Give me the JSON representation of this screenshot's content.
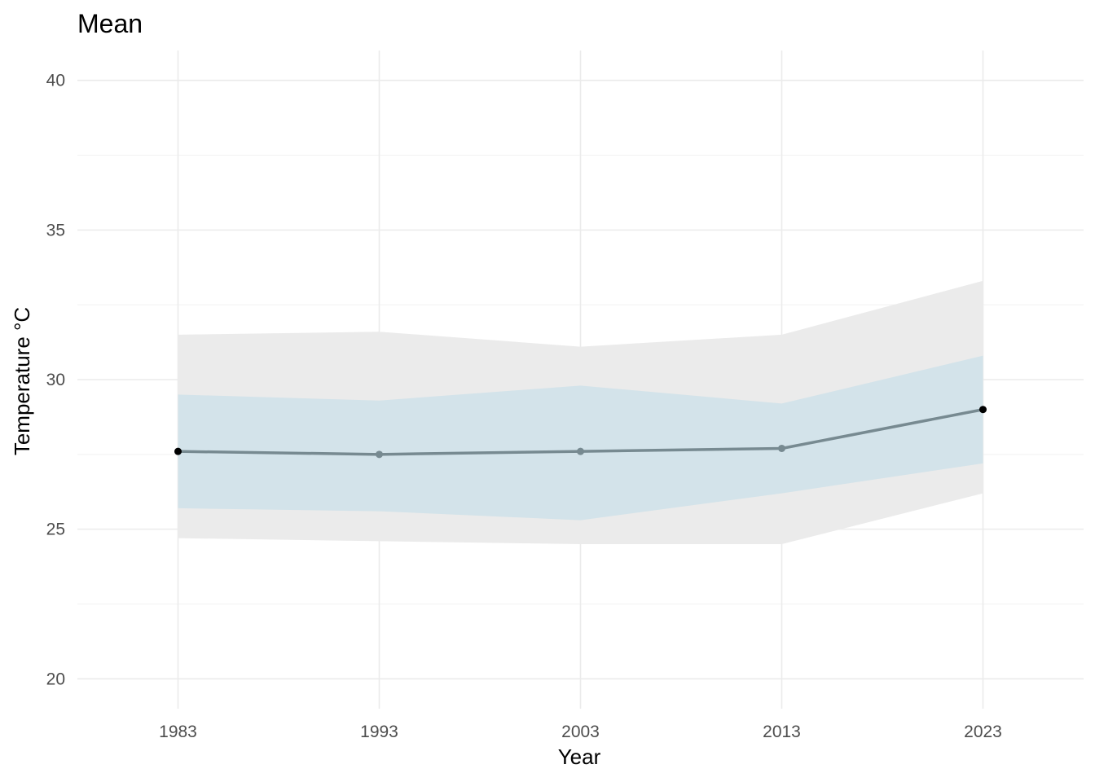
{
  "chart_data": {
    "type": "line",
    "title": "Mean",
    "xlabel": "Year",
    "ylabel": "Temperature °C",
    "x": [
      1983,
      1993,
      2003,
      2013,
      2023
    ],
    "x_ticks": [
      "1983",
      "1993",
      "2003",
      "2013",
      "2023"
    ],
    "y_ticks": [
      "20",
      "25",
      "30",
      "35",
      "40"
    ],
    "xlim": [
      1978,
      2028
    ],
    "ylim": [
      19,
      41
    ],
    "grid": true,
    "legend": "none",
    "series": [
      {
        "values": [
          27.6,
          27.5,
          27.6,
          27.7,
          29.0
        ],
        "color": "#778a91",
        "point_color": "#000000"
      }
    ],
    "bands": [
      {
        "lower": [
          24.7,
          24.6,
          24.5,
          24.5,
          26.2
        ],
        "upper": [
          31.5,
          31.6,
          31.1,
          31.5,
          33.3
        ],
        "color": "#ebebeb"
      },
      {
        "lower": [
          25.7,
          25.6,
          25.3,
          26.2,
          27.2
        ],
        "upper": [
          29.5,
          29.3,
          29.8,
          29.2,
          30.8
        ],
        "color": "#d3e3ea"
      }
    ]
  }
}
